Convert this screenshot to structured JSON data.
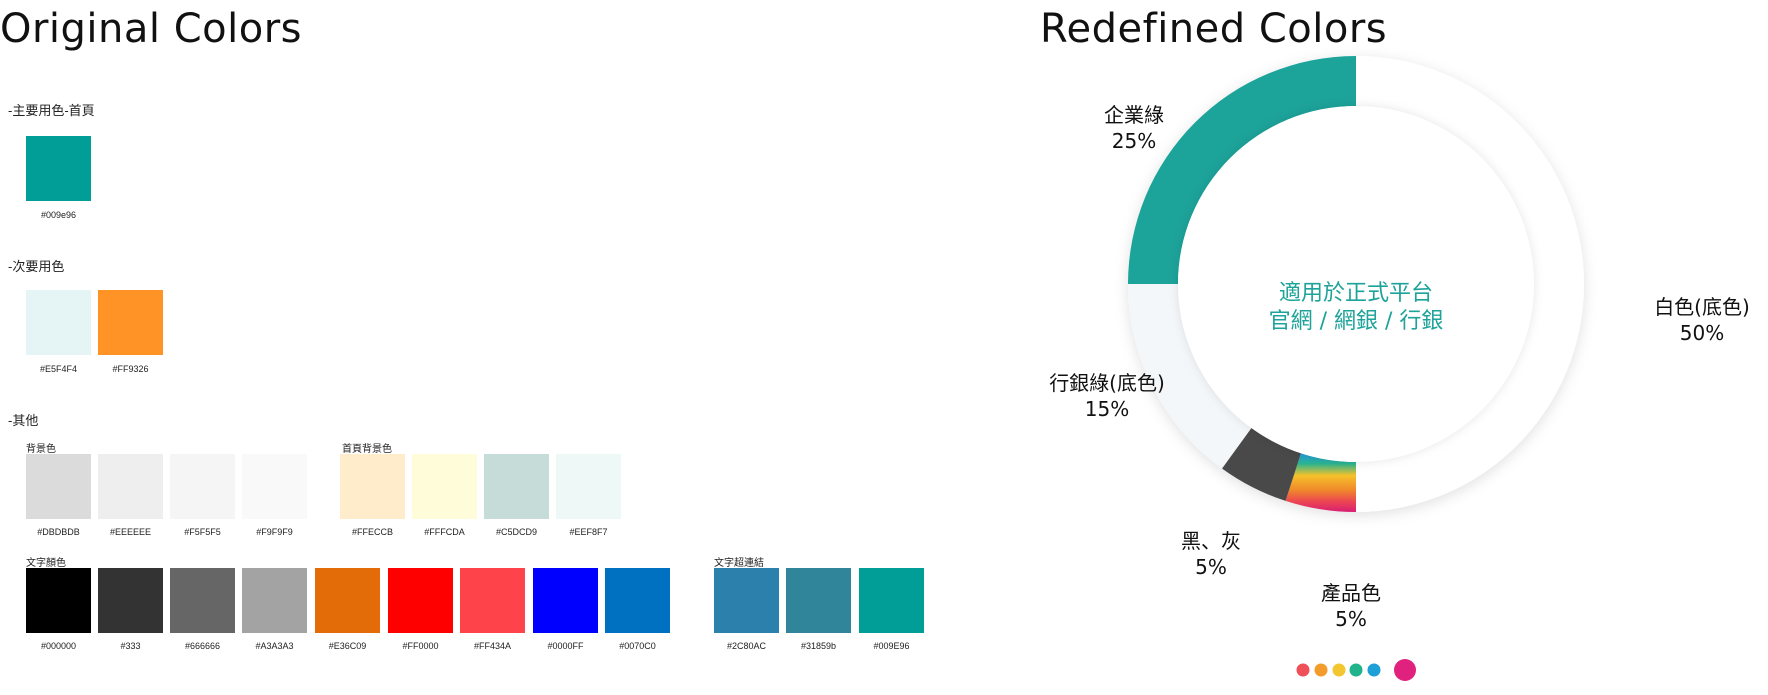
{
  "left": {
    "heading": "Original Colors",
    "primary": {
      "title": "-主要用色-首頁",
      "swatches": [
        {
          "color": "#009e96",
          "label": "#009e96"
        }
      ]
    },
    "secondary": {
      "title": "-次要用色",
      "swatches": [
        {
          "color": "#E5F4F4",
          "label": "#E5F4F4"
        },
        {
          "color": "#FF9326",
          "label": "#FF9326"
        }
      ]
    },
    "others": {
      "title": "-其他",
      "background": {
        "label": "背景色",
        "swatches": [
          {
            "color": "#DBDBDB",
            "label": "#DBDBDB"
          },
          {
            "color": "#EEEEEE",
            "label": "#EEEEEE"
          },
          {
            "color": "#F5F5F5",
            "label": "#F5F5F5"
          },
          {
            "color": "#F9F9F9",
            "label": "#F9F9F9"
          }
        ]
      },
      "home_background": {
        "label": "首頁背景色",
        "swatches": [
          {
            "color": "#FFECCB",
            "label": "#FFECCB"
          },
          {
            "color": "#FFFCDA",
            "label": "#FFFCDA"
          },
          {
            "color": "#C5DCD9",
            "label": "#C5DCD9"
          },
          {
            "color": "#EEF8F7",
            "label": "#EEF8F7"
          }
        ]
      },
      "text": {
        "label": "文字顏色",
        "swatches": [
          {
            "color": "#000000",
            "label": "#000000"
          },
          {
            "color": "#333333",
            "label": "#333"
          },
          {
            "color": "#666666",
            "label": "#666666"
          },
          {
            "color": "#A3A3A3",
            "label": "#A3A3A3"
          },
          {
            "color": "#E36C09",
            "label": "#E36C09"
          },
          {
            "color": "#FF0000",
            "label": "#FF0000"
          },
          {
            "color": "#FF434A",
            "label": "#FF434A"
          },
          {
            "color": "#0000FF",
            "label": "#0000FF"
          },
          {
            "color": "#0070C0",
            "label": "#0070C0"
          }
        ]
      },
      "text_link": {
        "label": "文字超連結",
        "swatches": [
          {
            "color": "#2C80AC",
            "label": "#2C80AC"
          },
          {
            "color": "#31859b",
            "label": "#31859b"
          },
          {
            "color": "#009E96",
            "label": "#009E96"
          }
        ]
      }
    }
  },
  "right": {
    "heading": "Redefined Colors"
  },
  "chart_data": {
    "type": "pie",
    "donut": true,
    "center_text": [
      "適用於正式平台",
      "官網 / 網銀 / 行銀"
    ],
    "slices": [
      {
        "name": "白色(底色)",
        "value": 50,
        "label": "50%",
        "color": "#FFFFFF"
      },
      {
        "name": "產品色",
        "value": 5,
        "label": "5%",
        "color": "gradient"
      },
      {
        "name": "黑、灰",
        "value": 5,
        "label": "5%",
        "color": "#4A4A4A"
      },
      {
        "name": "行銀綠(底色)",
        "value": 15,
        "label": "15%",
        "color": "#F4F7FA"
      },
      {
        "name": "企業綠",
        "value": 25,
        "label": "25%",
        "color": "#1AA39A"
      }
    ],
    "product_dots": [
      "#EF4F57",
      "#F39C2C",
      "#F3C52E",
      "#21B38B",
      "#1D9FD8",
      "#E0217E"
    ]
  }
}
